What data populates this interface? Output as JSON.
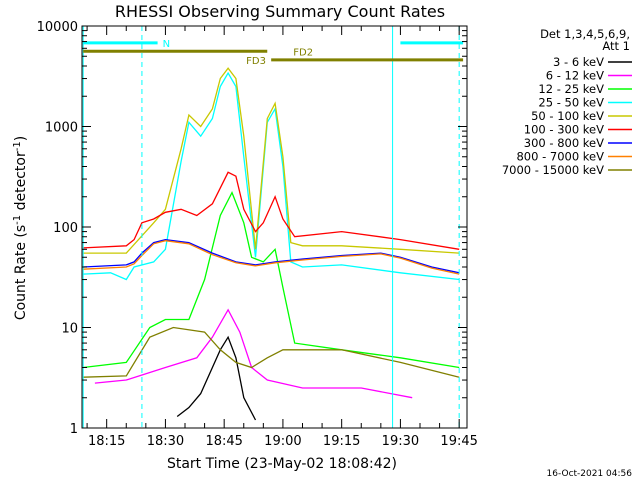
{
  "chart_data": {
    "type": "line",
    "title": "RHESSI Observing Summary Count Rates",
    "xlabel": "Start Time (23-May-02 18:08:42)",
    "ylabel_main": "Count Rate (s",
    "ylabel_sup1": "-1",
    "ylabel_mid": " detector",
    "ylabel_sup2": "-1",
    "ylabel_end": ")",
    "y_scale": "log",
    "ylim": [
      1,
      10000
    ],
    "xlim": [
      "18:08:42",
      "19:47:00"
    ],
    "x_ticks": [
      "18:15",
      "18:30",
      "18:45",
      "19:00",
      "19:15",
      "19:30",
      "19:45"
    ],
    "y_ticks": [
      "1",
      "10",
      "100",
      "1000",
      "10000"
    ],
    "legend_header": [
      "Det 1,3,4,5,6,9,",
      "Att 1"
    ],
    "legend_position": "right",
    "timestamp": "16-Oct-2021 04:56",
    "annotations": [
      {
        "label": "N",
        "color": "#00ffff",
        "ranges": [
          [
            "18:09",
            "18:28"
          ],
          [
            "19:30",
            "19:46"
          ]
        ],
        "y_level": 6800
      },
      {
        "label": "FD2",
        "color": "#808000",
        "ranges": [
          [
            "18:09",
            "18:56"
          ]
        ],
        "y_level": 5600
      },
      {
        "label": "FD3",
        "color": "#808000",
        "ranges": [
          [
            "18:57",
            "19:46"
          ]
        ],
        "y_level": 4600
      }
    ],
    "vlines_cyan_solid": [
      "18:09",
      "19:28"
    ],
    "vlines_cyan_dashed": [
      "18:24",
      "19:45"
    ],
    "series": [
      {
        "name": "3 - 6 keV",
        "color": "#000000",
        "x": [
          "18:33",
          "18:36",
          "18:39",
          "18:42",
          "18:44",
          "18:46",
          "18:48",
          "18:50",
          "18:53"
        ],
        "y": [
          1.3,
          1.6,
          2.2,
          4,
          6,
          8,
          5,
          2,
          1.2
        ]
      },
      {
        "name": "6 - 12 keV",
        "color": "#ff00ff",
        "x": [
          "18:12",
          "18:20",
          "18:30",
          "18:38",
          "18:42",
          "18:46",
          "18:49",
          "18:52",
          "18:56",
          "19:05",
          "19:20",
          "19:33"
        ],
        "y": [
          2.8,
          3,
          4,
          5,
          8,
          15,
          9,
          4,
          3,
          2.5,
          2.5,
          2
        ]
      },
      {
        "name": "12 - 25 keV",
        "color": "#00ff00",
        "x": [
          "18:09",
          "18:20",
          "18:26",
          "18:30",
          "18:36",
          "18:40",
          "18:44",
          "18:47",
          "18:50",
          "18:52",
          "18:55",
          "18:58",
          "19:00",
          "19:03",
          "19:15",
          "19:30",
          "19:45"
        ],
        "y": [
          4,
          4.5,
          10,
          12,
          12,
          30,
          130,
          220,
          110,
          50,
          45,
          60,
          25,
          7,
          6,
          5,
          4
        ]
      },
      {
        "name": "25 - 50 keV",
        "color": "#00ffff",
        "x": [
          "18:09",
          "18:16",
          "18:20",
          "18:22",
          "18:27",
          "18:30",
          "18:34",
          "18:36",
          "18:39",
          "18:42",
          "18:44",
          "18:46",
          "18:48",
          "18:50",
          "18:53",
          "18:56",
          "18:58",
          "19:00",
          "19:02",
          "19:05",
          "19:15",
          "19:30",
          "19:45"
        ],
        "y": [
          34,
          35,
          30,
          40,
          45,
          60,
          450,
          1100,
          800,
          1200,
          2500,
          3400,
          2500,
          500,
          50,
          1100,
          1500,
          400,
          45,
          40,
          42,
          35,
          30
        ]
      },
      {
        "name": "50 - 100 keV",
        "color": "#c8c800",
        "x": [
          "18:09",
          "18:20",
          "18:27",
          "18:30",
          "18:34",
          "18:36",
          "18:39",
          "18:42",
          "18:44",
          "18:46",
          "18:48",
          "18:50",
          "18:53",
          "18:56",
          "18:58",
          "19:00",
          "19:02",
          "19:05",
          "19:15",
          "19:30",
          "19:45"
        ],
        "y": [
          55,
          55,
          110,
          150,
          600,
          1300,
          1000,
          1500,
          3000,
          3800,
          3000,
          800,
          60,
          1200,
          1700,
          500,
          70,
          65,
          65,
          60,
          55
        ]
      },
      {
        "name": "100 - 300 keV",
        "color": "#ff0000",
        "x": [
          "18:09",
          "18:20",
          "18:22",
          "18:24",
          "18:27",
          "18:30",
          "18:34",
          "18:38",
          "18:42",
          "18:46",
          "18:48",
          "18:50",
          "18:53",
          "18:55",
          "18:58",
          "19:00",
          "19:03",
          "19:15",
          "19:30",
          "19:45"
        ],
        "y": [
          62,
          65,
          75,
          110,
          120,
          140,
          150,
          130,
          170,
          350,
          320,
          150,
          90,
          110,
          200,
          120,
          80,
          90,
          75,
          60
        ]
      },
      {
        "name": "300 - 800 keV",
        "color": "#0000ff",
        "x": [
          "18:09",
          "18:20",
          "18:22",
          "18:24",
          "18:27",
          "18:30",
          "18:36",
          "18:42",
          "18:48",
          "18:53",
          "18:58",
          "19:05",
          "19:15",
          "19:25",
          "19:30",
          "19:38",
          "19:45"
        ],
        "y": [
          40,
          42,
          45,
          55,
          70,
          75,
          70,
          55,
          45,
          42,
          45,
          48,
          52,
          55,
          50,
          40,
          35
        ]
      },
      {
        "name": "800 - 7000 keV",
        "color": "#ff8000",
        "x": [
          "18:09",
          "18:20",
          "18:22",
          "18:24",
          "18:27",
          "18:30",
          "18:36",
          "18:42",
          "18:48",
          "18:53",
          "18:58",
          "19:05",
          "19:15",
          "19:25",
          "19:30",
          "19:38",
          "19:45"
        ],
        "y": [
          38,
          40,
          43,
          52,
          68,
          73,
          68,
          53,
          44,
          41,
          44,
          47,
          51,
          54,
          49,
          39,
          34
        ]
      },
      {
        "name": "7000 - 15000 keV",
        "color": "#808000",
        "x": [
          "18:09",
          "18:20",
          "18:26",
          "18:32",
          "18:40",
          "18:44",
          "18:48",
          "18:52",
          "18:56",
          "19:00",
          "19:15",
          "19:30",
          "19:45"
        ],
        "y": [
          3.2,
          3.3,
          8,
          10,
          9,
          6,
          4.5,
          4,
          5,
          6,
          6,
          4.5,
          3.2
        ]
      }
    ]
  }
}
